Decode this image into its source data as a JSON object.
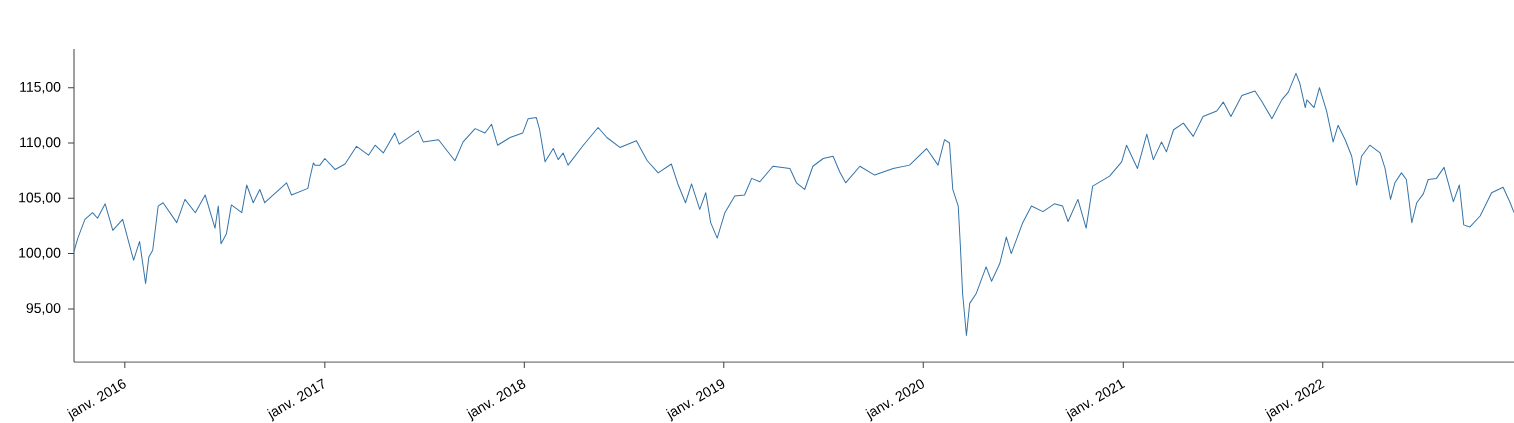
{
  "chart_data": {
    "type": "line",
    "xlim": [
      "2015-09-30",
      "2022-12-17"
    ],
    "ylim": [
      90.2,
      118.5
    ],
    "xticks": [
      {
        "value": "2016-01-01",
        "label": "janv. 2016"
      },
      {
        "value": "2017-01-01",
        "label": "janv. 2017"
      },
      {
        "value": "2018-01-01",
        "label": "janv. 2018"
      },
      {
        "value": "2019-01-01",
        "label": "janv. 2019"
      },
      {
        "value": "2020-01-01",
        "label": "janv. 2020"
      },
      {
        "value": "2021-01-01",
        "label": "janv. 2021"
      },
      {
        "value": "2022-01-01",
        "label": "janv. 2022"
      }
    ],
    "yticks": [
      {
        "value": 95,
        "label": "95,00"
      },
      {
        "value": 100,
        "label": "100,00"
      },
      {
        "value": 105,
        "label": "105,00"
      },
      {
        "value": 110,
        "label": "110,00"
      },
      {
        "value": 115,
        "label": "115,00"
      }
    ],
    "x": [
      "2015-09-30",
      "2015-10-07",
      "2015-10-20",
      "2015-11-03",
      "2015-11-12",
      "2015-11-26",
      "2015-12-10",
      "2015-12-28",
      "2016-01-17",
      "2016-01-28",
      "2016-02-08",
      "2016-02-14",
      "2016-02-21",
      "2016-03-02",
      "2016-03-11",
      "2016-04-05",
      "2016-04-20",
      "2016-05-09",
      "2016-05-27",
      "2016-06-14",
      "2016-06-20",
      "2016-06-25",
      "2016-07-05",
      "2016-07-14",
      "2016-08-02",
      "2016-08-11",
      "2016-08-23",
      "2016-09-04",
      "2016-09-13",
      "2016-10-23",
      "2016-11-01",
      "2016-12-01",
      "2016-12-04",
      "2016-12-11",
      "2016-12-14",
      "2016-12-23",
      "2017-01-01",
      "2017-01-20",
      "2017-02-07",
      "2017-02-28",
      "2017-03-22",
      "2017-04-03",
      "2017-04-18",
      "2017-05-09",
      "2017-05-17",
      "2017-06-21",
      "2017-06-30",
      "2017-07-28",
      "2017-08-27",
      "2017-09-11",
      "2017-10-03",
      "2017-10-21",
      "2017-11-02",
      "2017-11-13",
      "2017-12-06",
      "2017-12-29",
      "2018-01-08",
      "2018-01-23",
      "2018-01-29",
      "2018-02-08",
      "2018-02-23",
      "2018-03-04",
      "2018-03-13",
      "2018-03-22",
      "2018-04-19",
      "2018-05-16",
      "2018-06-01",
      "2018-06-25",
      "2018-07-25",
      "2018-08-14",
      "2018-09-03",
      "2018-09-27",
      "2018-10-09",
      "2018-10-23",
      "2018-11-03",
      "2018-11-18",
      "2018-11-29",
      "2018-12-08",
      "2018-12-20",
      "2019-01-03",
      "2019-01-21",
      "2019-02-08",
      "2019-02-21",
      "2019-03-08",
      "2019-04-01",
      "2019-05-02",
      "2019-05-14",
      "2019-05-29",
      "2019-06-13",
      "2019-07-02",
      "2019-07-20",
      "2019-08-01",
      "2019-08-12",
      "2019-09-07",
      "2019-10-04",
      "2019-11-07",
      "2019-12-07",
      "2020-01-07",
      "2020-01-28",
      "2020-02-09",
      "2020-02-18",
      "2020-02-24",
      "2020-03-05",
      "2020-03-09",
      "2020-03-13",
      "2020-03-20",
      "2020-03-26",
      "2020-04-07",
      "2020-04-25",
      "2020-05-05",
      "2020-05-20",
      "2020-06-01",
      "2020-06-10",
      "2020-07-01",
      "2020-07-17",
      "2020-08-07",
      "2020-08-28",
      "2020-09-12",
      "2020-09-22",
      "2020-10-10",
      "2020-10-25",
      "2020-11-06",
      "2020-12-07",
      "2020-12-29",
      "2021-01-07",
      "2021-01-27",
      "2021-02-13",
      "2021-02-25",
      "2021-03-12",
      "2021-03-21",
      "2021-04-03",
      "2021-04-21",
      "2021-05-09",
      "2021-05-27",
      "2021-06-21",
      "2021-07-03",
      "2021-07-17",
      "2021-08-06",
      "2021-08-30",
      "2021-09-11",
      "2021-09-30",
      "2021-10-18",
      "2021-10-30",
      "2021-11-13",
      "2021-11-20",
      "2021-11-30",
      "2021-12-03",
      "2021-12-16",
      "2021-12-26",
      "2022-01-08",
      "2022-01-20",
      "2022-01-29",
      "2022-02-11",
      "2022-02-23",
      "2022-03-04",
      "2022-03-13",
      "2022-03-28",
      "2022-04-16",
      "2022-04-25",
      "2022-05-05",
      "2022-05-13",
      "2022-05-25",
      "2022-06-03",
      "2022-06-13",
      "2022-06-22",
      "2022-07-04",
      "2022-07-13",
      "2022-07-28",
      "2022-08-11",
      "2022-08-28",
      "2022-09-08",
      "2022-09-16",
      "2022-09-27",
      "2022-10-16",
      "2022-11-06",
      "2022-11-27",
      "2022-12-10",
      "2022-12-17"
    ],
    "series": [
      {
        "color": "#3474aa",
        "values": [
          100.2,
          101.4,
          103.1,
          103.7,
          103.2,
          104.5,
          102.1,
          103.1,
          99.4,
          101.1,
          97.3,
          99.7,
          100.3,
          104.3,
          104.6,
          102.8,
          104.9,
          103.7,
          105.3,
          102.3,
          104.3,
          100.9,
          101.8,
          104.4,
          103.7,
          106.2,
          104.6,
          105.8,
          104.6,
          106.4,
          105.3,
          105.9,
          106.7,
          108.2,
          108.0,
          108.0,
          108.6,
          107.6,
          108.1,
          109.7,
          108.9,
          109.8,
          109.1,
          110.9,
          109.9,
          111.1,
          110.1,
          110.3,
          108.4,
          110.1,
          111.3,
          110.9,
          111.7,
          109.8,
          110.5,
          110.9,
          112.2,
          112.3,
          111.2,
          108.3,
          109.5,
          108.5,
          109.1,
          108.0,
          109.8,
          111.4,
          110.5,
          109.6,
          110.2,
          108.4,
          107.3,
          108.1,
          106.3,
          104.6,
          106.3,
          104.0,
          105.5,
          102.8,
          101.4,
          103.7,
          105.2,
          105.3,
          106.8,
          106.5,
          107.9,
          107.7,
          106.4,
          105.8,
          107.9,
          108.6,
          108.8,
          107.4,
          106.4,
          107.9,
          107.1,
          107.7,
          108.0,
          109.5,
          108.0,
          110.3,
          110.0,
          105.8,
          104.3,
          100.6,
          96.4,
          92.6,
          95.5,
          96.4,
          98.8,
          97.5,
          99.1,
          101.5,
          100.0,
          102.8,
          104.3,
          103.8,
          104.5,
          104.3,
          102.9,
          104.9,
          102.3,
          106.1,
          107.0,
          108.3,
          109.8,
          107.7,
          110.8,
          108.5,
          110.1,
          109.2,
          111.2,
          111.8,
          110.6,
          112.4,
          112.9,
          113.7,
          112.4,
          114.3,
          114.7,
          113.8,
          112.2,
          113.9,
          114.6,
          116.3,
          115.4,
          113.2,
          113.9,
          113.2,
          115.0,
          112.9,
          110.1,
          111.6,
          110.3,
          108.8,
          106.2,
          108.8,
          109.8,
          109.1,
          107.7,
          104.9,
          106.4,
          107.3,
          106.7,
          102.8,
          104.6,
          105.4,
          106.7,
          106.8,
          107.8,
          104.7,
          106.2,
          102.6,
          102.4,
          103.4,
          105.5,
          106.0,
          104.6,
          103.7
        ]
      }
    ]
  }
}
